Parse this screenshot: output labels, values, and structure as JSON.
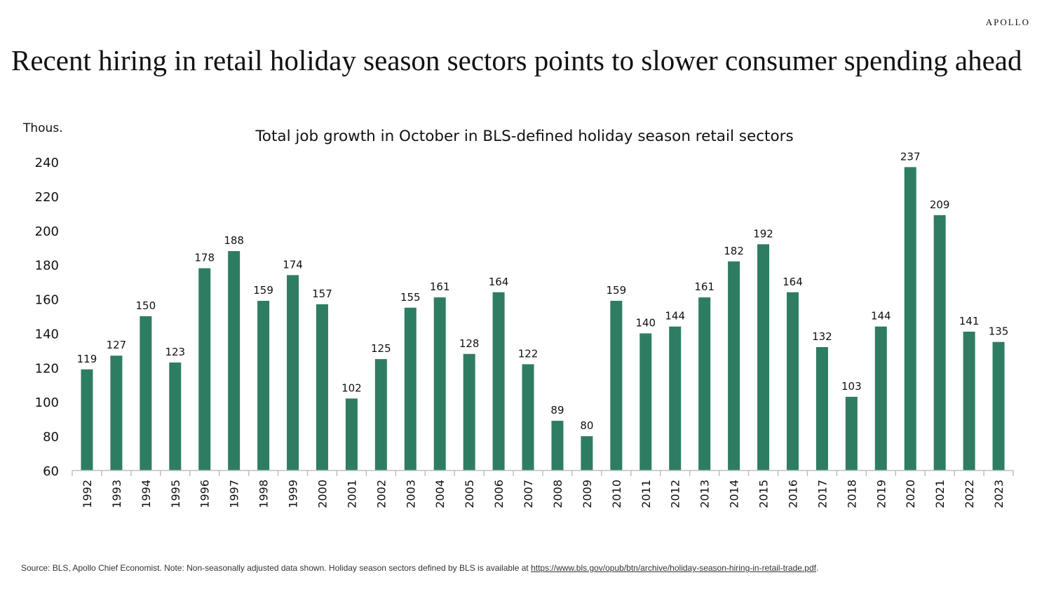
{
  "brand": "APOLLO",
  "headline": "Recent hiring in retail holiday season sectors points to slower consumer spending ahead",
  "footer": {
    "text": "Source: BLS, Apollo Chief Economist. Note: Non-seasonally adjusted data shown. Holiday season sectors defined by BLS is available at ",
    "link": "https://www.bls.gov/opub/btn/archive/holiday-season-hiring-in-retail-trade.pdf",
    "suffix": "."
  },
  "colors": {
    "bar": "#2e7d62",
    "axis": "#bfbfbf"
  },
  "chart_data": {
    "type": "bar",
    "title": "Total job growth in October in BLS-defined holiday season retail sectors",
    "ylabel": "Thous.",
    "xlabel": "",
    "ylim": [
      60,
      240
    ],
    "yticks": [
      60,
      80,
      100,
      120,
      140,
      160,
      180,
      200,
      220,
      240
    ],
    "grid": false,
    "categories": [
      "1992",
      "1993",
      "1994",
      "1995",
      "1996",
      "1997",
      "1998",
      "1999",
      "2000",
      "2001",
      "2002",
      "2003",
      "2004",
      "2005",
      "2006",
      "2007",
      "2008",
      "2009",
      "2010",
      "2011",
      "2012",
      "2013",
      "2014",
      "2015",
      "2016",
      "2017",
      "2018",
      "2019",
      "2020",
      "2021",
      "2022",
      "2023"
    ],
    "values": [
      119,
      127,
      150,
      123,
      178,
      188,
      159,
      174,
      157,
      102,
      125,
      155,
      161,
      128,
      164,
      122,
      89,
      80,
      159,
      140,
      144,
      161,
      182,
      192,
      164,
      132,
      103,
      144,
      237,
      209,
      141,
      135
    ]
  }
}
